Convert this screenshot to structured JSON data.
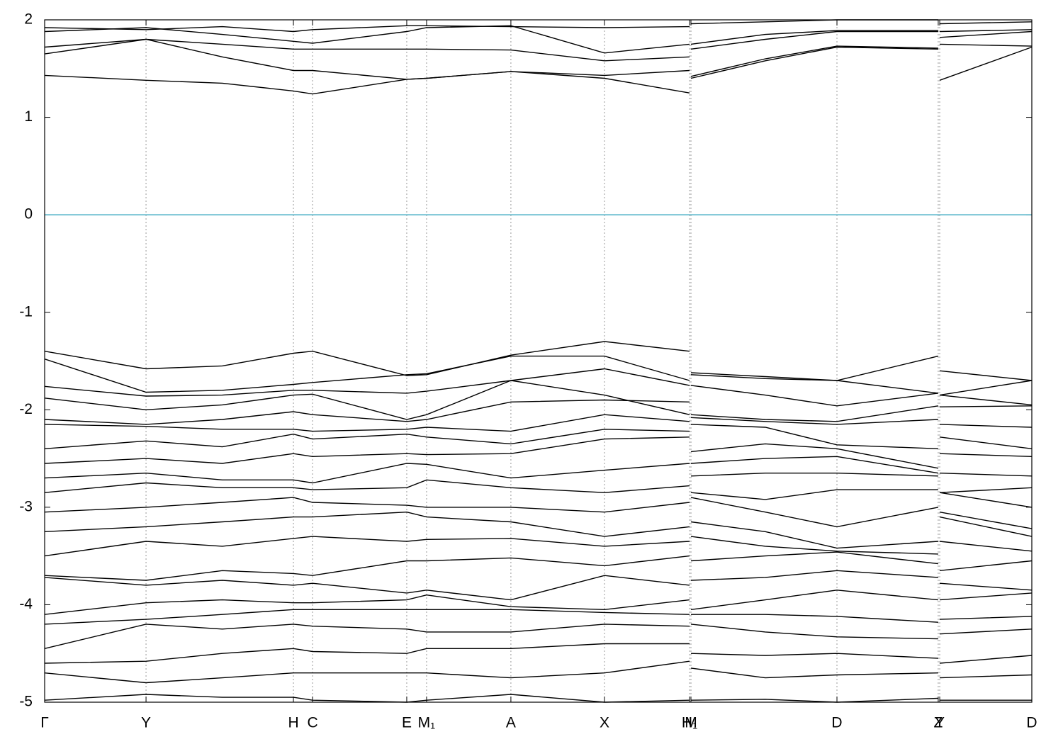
{
  "chart_data": {
    "type": "line",
    "xlim": [
      0,
      1
    ],
    "xticks": [
      {
        "value": 0,
        "label": "Γ"
      },
      {
        "value": 0.1027,
        "label": "Y"
      },
      {
        "value": 0.252,
        "label": "H"
      },
      {
        "value": 0.2714,
        "label": "C"
      },
      {
        "value": 0.3668,
        "label": "E"
      },
      {
        "value": 0.3869,
        "label": "M₁"
      },
      {
        "value": 0.4723,
        "label": "A"
      },
      {
        "value": 0.5671,
        "label": "X"
      },
      {
        "value": 0.6533,
        "label": "H₁"
      },
      {
        "value": 0.6547,
        "label": "M"
      },
      {
        "value": 0.8026,
        "label": "D"
      },
      {
        "value": 0.9052,
        "label": "Z"
      },
      {
        "value": 0.9067,
        "label": "Y"
      },
      {
        "value": 1,
        "label": "D"
      }
    ],
    "ylim": [
      -5,
      2
    ],
    "yticks": [
      -5,
      -4,
      -3,
      -2,
      -1,
      0,
      1,
      2
    ],
    "xgrid": true,
    "line_color": "#000000",
    "zero_line_color": "#4fb0c6",
    "x": [
      0,
      0.1027,
      0.18,
      0.252,
      0.2714,
      0.3668,
      0.3869,
      0.4723,
      0.5671,
      0.6533,
      0.654,
      0.6547,
      0.73,
      0.8026,
      0.9052,
      0.906,
      0.9067,
      1
    ],
    "series": [
      {
        "values": [
          1.43,
          1.38,
          1.35,
          1.27,
          1.24,
          1.39,
          1.4,
          1.47,
          1.4,
          1.25,
          null,
          1.4,
          1.58,
          1.72,
          1.7,
          null,
          1.38,
          1.72
        ]
      },
      {
        "values": [
          1.65,
          1.8,
          1.62,
          1.48,
          1.48,
          1.39,
          1.4,
          1.47,
          1.43,
          1.48,
          null,
          1.42,
          1.6,
          1.73,
          1.71,
          null,
          1.75,
          1.73
        ]
      },
      {
        "values": [
          1.72,
          1.8,
          1.75,
          1.7,
          1.7,
          1.7,
          1.7,
          1.69,
          1.58,
          1.62,
          null,
          1.7,
          1.8,
          1.88,
          1.88,
          null,
          1.82,
          1.88
        ]
      },
      {
        "values": [
          1.88,
          1.92,
          1.85,
          1.78,
          1.76,
          1.88,
          1.92,
          1.94,
          1.66,
          1.75,
          null,
          1.75,
          1.85,
          1.89,
          1.89,
          null,
          1.88,
          1.9
        ]
      },
      {
        "values": [
          1.92,
          1.9,
          1.93,
          1.88,
          1.9,
          1.94,
          1.94,
          1.93,
          1.92,
          1.93,
          null,
          1.96,
          1.98,
          2.0,
          2.0,
          null,
          1.96,
          1.98
        ]
      },
      {
        "values": [
          -1.4,
          -1.58,
          -1.55,
          -1.42,
          -1.4,
          -1.65,
          -1.64,
          -1.44,
          -1.3,
          -1.4,
          null,
          -1.62,
          -1.66,
          -1.7,
          -1.45,
          null,
          -1.6,
          -1.7
        ]
      },
      {
        "values": [
          -1.48,
          -1.82,
          -1.8,
          -1.74,
          -1.72,
          -1.64,
          -1.63,
          -1.45,
          -1.45,
          -1.7,
          null,
          -1.64,
          -1.68,
          -1.7,
          -1.83,
          null,
          -1.85,
          -1.7
        ]
      },
      {
        "values": [
          -1.76,
          -1.86,
          -1.85,
          -1.8,
          -1.8,
          -1.83,
          -1.81,
          -1.7,
          -1.58,
          -1.75,
          null,
          -1.75,
          -1.85,
          -1.96,
          -1.83,
          null,
          -1.85,
          -1.95
        ]
      },
      {
        "values": [
          -1.88,
          -2.0,
          -1.95,
          -1.85,
          -1.84,
          -2.1,
          -2.05,
          -1.7,
          -1.85,
          -2.05,
          null,
          -2.05,
          -2.1,
          -2.12,
          -1.96,
          null,
          -1.97,
          -1.96
        ]
      },
      {
        "values": [
          -2.1,
          -2.15,
          -2.1,
          -2.02,
          -2.05,
          -2.12,
          -2.1,
          -1.92,
          -1.9,
          -1.92,
          null,
          -2.08,
          -2.12,
          -2.15,
          -2.1,
          null,
          -2.15,
          -2.18
        ]
      },
      {
        "values": [
          -2.15,
          -2.17,
          -2.2,
          -2.2,
          -2.22,
          -2.2,
          -2.18,
          -2.22,
          -2.05,
          -2.12,
          null,
          -2.15,
          -2.18,
          -2.36,
          -2.4,
          null,
          -2.28,
          -2.4
        ]
      },
      {
        "values": [
          -2.4,
          -2.32,
          -2.38,
          -2.25,
          -2.3,
          -2.25,
          -2.28,
          -2.35,
          -2.2,
          -2.22,
          null,
          -2.43,
          -2.35,
          -2.4,
          -2.6,
          null,
          -2.45,
          -2.48
        ]
      },
      {
        "values": [
          -2.55,
          -2.5,
          -2.55,
          -2.45,
          -2.48,
          -2.45,
          -2.46,
          -2.45,
          -2.3,
          -2.28,
          null,
          -2.55,
          -2.5,
          -2.48,
          -2.65,
          null,
          -2.65,
          -2.68
        ]
      },
      {
        "values": [
          -2.7,
          -2.65,
          -2.72,
          -2.72,
          -2.75,
          -2.55,
          -2.56,
          -2.7,
          -2.62,
          -2.55,
          null,
          -2.68,
          -2.65,
          -2.65,
          -2.68,
          null,
          -2.85,
          -2.8
        ]
      },
      {
        "values": [
          -2.85,
          -2.75,
          -2.8,
          -2.8,
          -2.82,
          -2.8,
          -2.72,
          -2.8,
          -2.85,
          -2.78,
          null,
          -2.85,
          -2.92,
          -2.82,
          -2.82,
          null,
          -2.85,
          -3.0
        ]
      },
      {
        "values": [
          -3.05,
          -3.0,
          -2.95,
          -2.9,
          -2.95,
          -2.98,
          -3.0,
          -3.0,
          -3.05,
          -2.95,
          null,
          -2.9,
          -3.05,
          -3.2,
          -3.0,
          null,
          -3.05,
          -3.22
        ]
      },
      {
        "values": [
          -3.25,
          -3.2,
          -3.15,
          -3.1,
          -3.1,
          -3.05,
          -3.1,
          -3.15,
          -3.3,
          -3.2,
          null,
          -3.15,
          -3.25,
          -3.42,
          -3.35,
          null,
          -3.1,
          -3.3
        ]
      },
      {
        "values": [
          -3.5,
          -3.35,
          -3.4,
          -3.32,
          -3.3,
          -3.35,
          -3.33,
          -3.32,
          -3.4,
          -3.35,
          null,
          -3.3,
          -3.4,
          -3.45,
          -3.48,
          null,
          -3.35,
          -3.45
        ]
      },
      {
        "values": [
          -3.7,
          -3.75,
          -3.65,
          -3.68,
          -3.7,
          -3.55,
          -3.55,
          -3.52,
          -3.6,
          -3.5,
          null,
          -3.55,
          -3.5,
          -3.46,
          -3.58,
          null,
          -3.65,
          -3.55
        ]
      },
      {
        "values": [
          -3.72,
          -3.8,
          -3.75,
          -3.8,
          -3.78,
          -3.88,
          -3.85,
          -3.95,
          -3.7,
          -3.8,
          null,
          -3.75,
          -3.72,
          -3.65,
          -3.72,
          null,
          -3.78,
          -3.85
        ]
      },
      {
        "values": [
          -4.1,
          -3.98,
          -3.95,
          -3.98,
          -3.98,
          -3.95,
          -3.9,
          -4.02,
          -4.05,
          -3.95,
          null,
          -4.05,
          -3.95,
          -3.85,
          -3.95,
          null,
          -3.95,
          -3.88
        ]
      },
      {
        "values": [
          -4.2,
          -4.15,
          -4.1,
          -4.05,
          -4.05,
          -4.05,
          -4.05,
          -4.05,
          -4.08,
          -4.1,
          null,
          -4.1,
          -4.1,
          -4.12,
          -4.18,
          null,
          -4.15,
          -4.12
        ]
      },
      {
        "values": [
          -4.45,
          -4.2,
          -4.25,
          -4.2,
          -4.22,
          -4.25,
          -4.28,
          -4.28,
          -4.2,
          -4.22,
          null,
          -4.2,
          -4.28,
          -4.33,
          -4.35,
          null,
          -4.3,
          -4.25
        ]
      },
      {
        "values": [
          -4.6,
          -4.58,
          -4.5,
          -4.45,
          -4.48,
          -4.5,
          -4.45,
          -4.45,
          -4.4,
          -4.4,
          null,
          -4.5,
          -4.52,
          -4.5,
          -4.55,
          null,
          -4.6,
          -4.52
        ]
      },
      {
        "values": [
          -4.7,
          -4.8,
          -4.75,
          -4.7,
          -4.7,
          -4.7,
          -4.7,
          -4.75,
          -4.7,
          -4.58,
          null,
          -4.65,
          -4.75,
          -4.72,
          -4.7,
          null,
          -4.75,
          -4.72
        ]
      },
      {
        "values": [
          -4.98,
          -4.92,
          -4.95,
          -4.95,
          -4.98,
          -5.0,
          -4.98,
          -4.92,
          -5.0,
          -4.98,
          null,
          -4.98,
          -4.97,
          -5.0,
          -4.96,
          null,
          -4.98,
          -4.98
        ]
      }
    ]
  }
}
